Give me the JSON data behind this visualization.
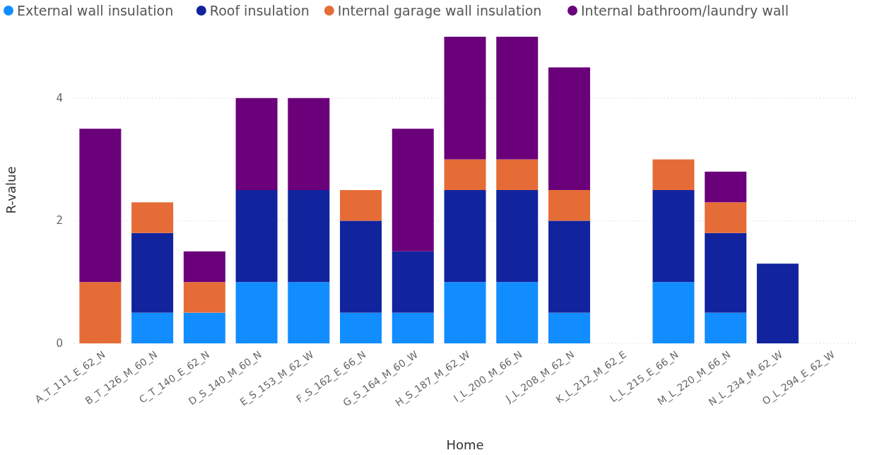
{
  "chart_data": {
    "type": "bar",
    "stacked": true,
    "xlabel": "Home",
    "ylabel": "R-value",
    "categories": [
      "A_T_111_E_62_N",
      "B_T_126_M_60_N",
      "C_T_140_E_62_N",
      "D_S_140_M_60_N",
      "E_S_153_M_62_W",
      "F_S_162_E_66_N",
      "G_S_164_M_60_W",
      "H_S_187_M_62_W",
      "I_L_200_M_66_N",
      "J_L_208_M_62_N",
      "K_L_212_M_62_E",
      "L_L_215_E_66_N",
      "M_L_220_M_66_N",
      "N_L_234_M_62_W",
      "O_L_294_E_62_W"
    ],
    "series": [
      {
        "name": "External wall insulation",
        "color": "#118dff",
        "values": [
          null,
          0.5,
          0.5,
          1,
          1,
          0.5,
          0.5,
          1,
          1,
          0.5,
          null,
          1,
          0.5,
          null,
          null
        ]
      },
      {
        "name": "Roof insulation",
        "color": "#12239e",
        "values": [
          null,
          1.3,
          null,
          1.5,
          1.5,
          1.5,
          1,
          1.5,
          1.5,
          1.5,
          null,
          1.5,
          1.3,
          1.3,
          null
        ]
      },
      {
        "name": "Internal garage wall insulation",
        "color": "#e66c37",
        "values": [
          1,
          0.5,
          0.5,
          null,
          null,
          0.5,
          null,
          0.5,
          0.5,
          0.5,
          null,
          0.5,
          0.5,
          null,
          null
        ]
      },
      {
        "name": "Internal bathroom/laundry wall",
        "color": "#6b007b",
        "values": [
          2.5,
          null,
          0.5,
          1.5,
          1.5,
          null,
          2,
          2,
          2,
          2,
          null,
          null,
          0.5,
          null,
          null
        ]
      }
    ],
    "ylim": [
      0,
      5
    ],
    "yticks": [
      0,
      2,
      4
    ],
    "grid": "y",
    "legend": "top left"
  }
}
